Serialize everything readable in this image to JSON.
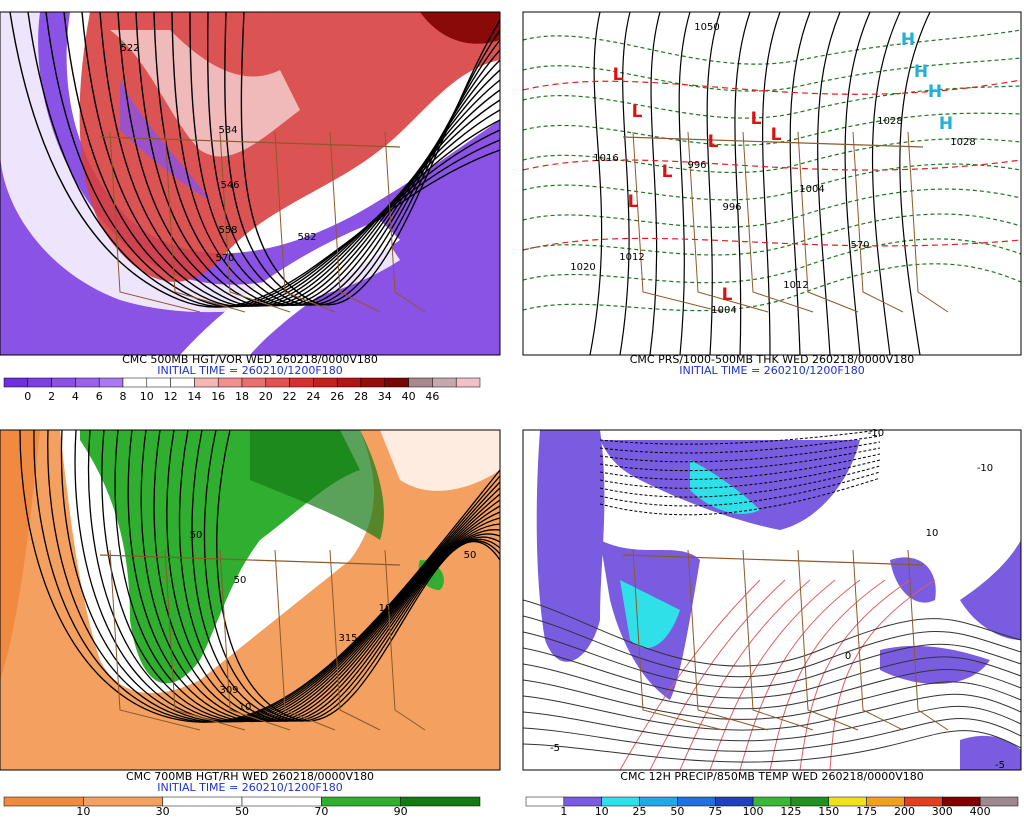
{
  "panels": [
    {
      "title": "CMC 500MB HGT/VOR WED 260218/0000V180",
      "initial_time": "INITIAL TIME = 260210/1200F180",
      "contour_labels": [
        "522",
        "534",
        "546",
        "558",
        "570",
        "582"
      ],
      "colorbar": {
        "labels": [
          0,
          2,
          4,
          6,
          8,
          10,
          12,
          14,
          16,
          18,
          20,
          22,
          24,
          26,
          28,
          34,
          40,
          46
        ],
        "colors": [
          "#6f2fdc",
          "#7d3fe2",
          "#8c50e8",
          "#9b62ec",
          "#aa78f0",
          "#ffffff",
          "#ffffff",
          "#ffffff",
          "#f6b4b4",
          "#f09090",
          "#ea7070",
          "#e25050",
          "#d83030",
          "#c81e1e",
          "#b41414",
          "#980c0c",
          "#7a0606",
          "#a88890",
          "#c8a8b0",
          "#f0c0c8"
        ]
      }
    },
    {
      "title": "CMC PRS/1000-500MB THK WED 260218/0000V180",
      "initial_time": "INITIAL TIME = 260210/1200F180",
      "contour_labels": [
        "1050",
        "1028",
        "1028",
        "1016",
        "996",
        "1004",
        "996",
        "1020",
        "1012",
        "1004",
        "1012",
        "570"
      ],
      "highs": [
        "H",
        "H",
        "H",
        "H"
      ],
      "lows": [
        "L",
        "L",
        "L",
        "L",
        "L",
        "L",
        "L",
        "L"
      ]
    },
    {
      "title": "CMC 700MB HGT/RH WED 260218/0000V180",
      "initial_time": "INITIAL TIME = 260210/1200F180",
      "contour_labels": [
        "315",
        "309",
        "10",
        "50",
        "10",
        "50",
        "50"
      ],
      "colorbar": {
        "labels": [
          10,
          30,
          50,
          70,
          90
        ],
        "colors": [
          "#f08a40",
          "#f4a060",
          "#ffffff",
          "#ffffff",
          "#2fae2f",
          "#147a14"
        ]
      }
    },
    {
      "title": "CMC 12H PRECIP/850MB TEMP WED 260218/0000V180",
      "contour_labels": [
        "-10",
        "-10",
        "0",
        "-5",
        "10",
        "-5"
      ],
      "colorbar": {
        "labels": [
          1,
          10,
          25,
          50,
          75,
          100,
          125,
          150,
          175,
          200,
          300,
          400
        ],
        "colors": [
          "#ffffff",
          "#7a5ce0",
          "#30e0e8",
          "#20a8e8",
          "#2070e0",
          "#2040c0",
          "#38b838",
          "#209020",
          "#f0e020",
          "#f0a020",
          "#e04020",
          "#800000",
          "#a08890"
        ]
      }
    }
  ]
}
